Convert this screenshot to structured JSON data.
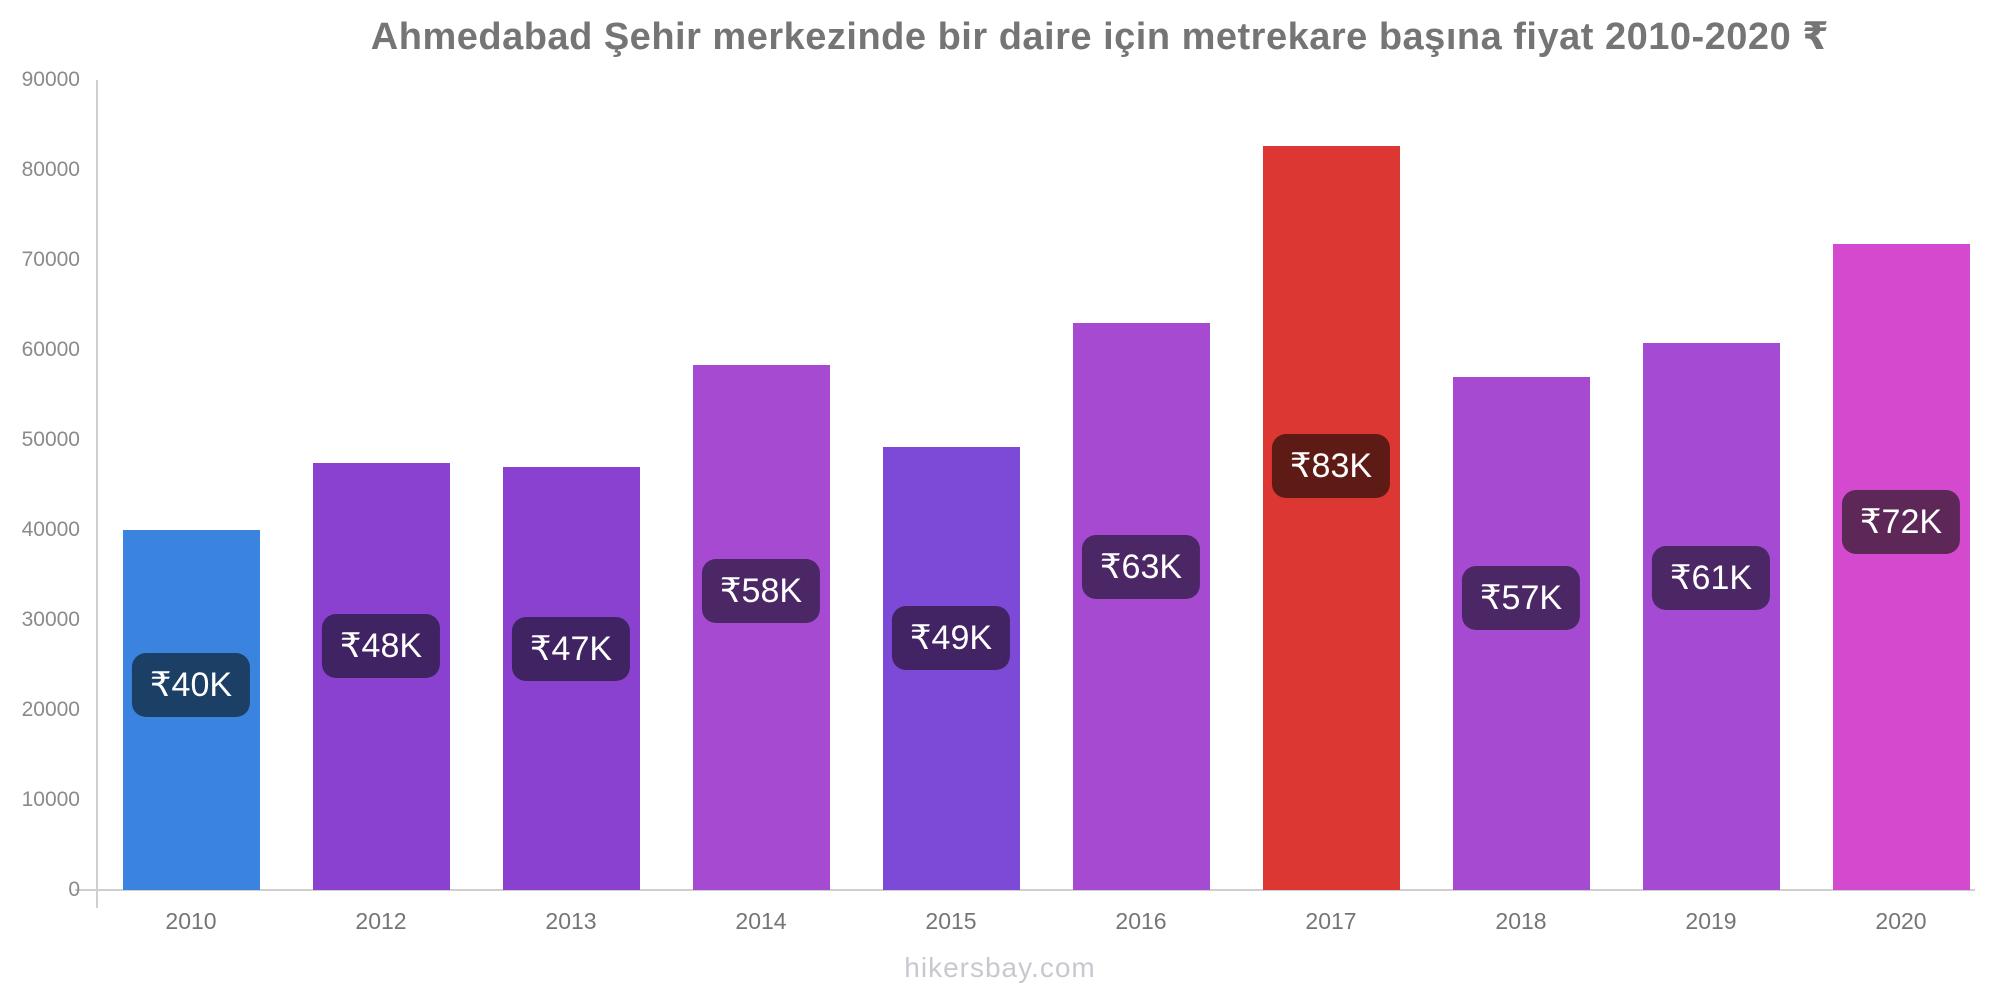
{
  "title": "Ahmedabad Şehir merkezinde bir daire için metrekare başına fiyat 2010-2020 ₹",
  "footer": "hikersbay.com",
  "colors": {
    "axis_line": "#cfcfcf",
    "y_tick_text": "#8a8a8a",
    "x_tick_text": "#757575",
    "title_text": "#757575",
    "footer_text": "#c8c8d0",
    "bar_label_text": "#ffffff"
  },
  "chart_data": {
    "type": "bar",
    "title": "Ahmedabad Şehir merkezinde bir daire için metrekare başına fiyat 2010-2020 ₹",
    "xlabel": "",
    "ylabel": "",
    "ylim": [
      0,
      90000
    ],
    "yticks": [
      0,
      10000,
      20000,
      30000,
      40000,
      50000,
      60000,
      70000,
      80000,
      90000
    ],
    "grid": false,
    "legend": false,
    "categories": [
      "2010",
      "2012",
      "2013",
      "2014",
      "2015",
      "2016",
      "2017",
      "2018",
      "2019",
      "2020"
    ],
    "values": [
      40000,
      47500,
      47000,
      58300,
      49200,
      63000,
      82700,
      57000,
      60800,
      71800
    ],
    "bar_labels": [
      "₹40K",
      "₹48K",
      "₹47K",
      "₹58K",
      "₹49K",
      "₹63K",
      "₹83K",
      "₹57K",
      "₹61K",
      "₹72K"
    ],
    "bar_colors": [
      "#3a83de",
      "#8b41d0",
      "#8b41d0",
      "#a64ad2",
      "#7d4ad8",
      "#a64ad2",
      "#dd3733",
      "#a64ad2",
      "#a54ad2",
      "#d44ace"
    ],
    "bar_label_bg": [
      "#1c3f66",
      "#3f2363",
      "#3f2363",
      "#4c2766",
      "#422465",
      "#4c2766",
      "#5e1b16",
      "#4c2766",
      "#4c2766",
      "#5d2858"
    ]
  }
}
